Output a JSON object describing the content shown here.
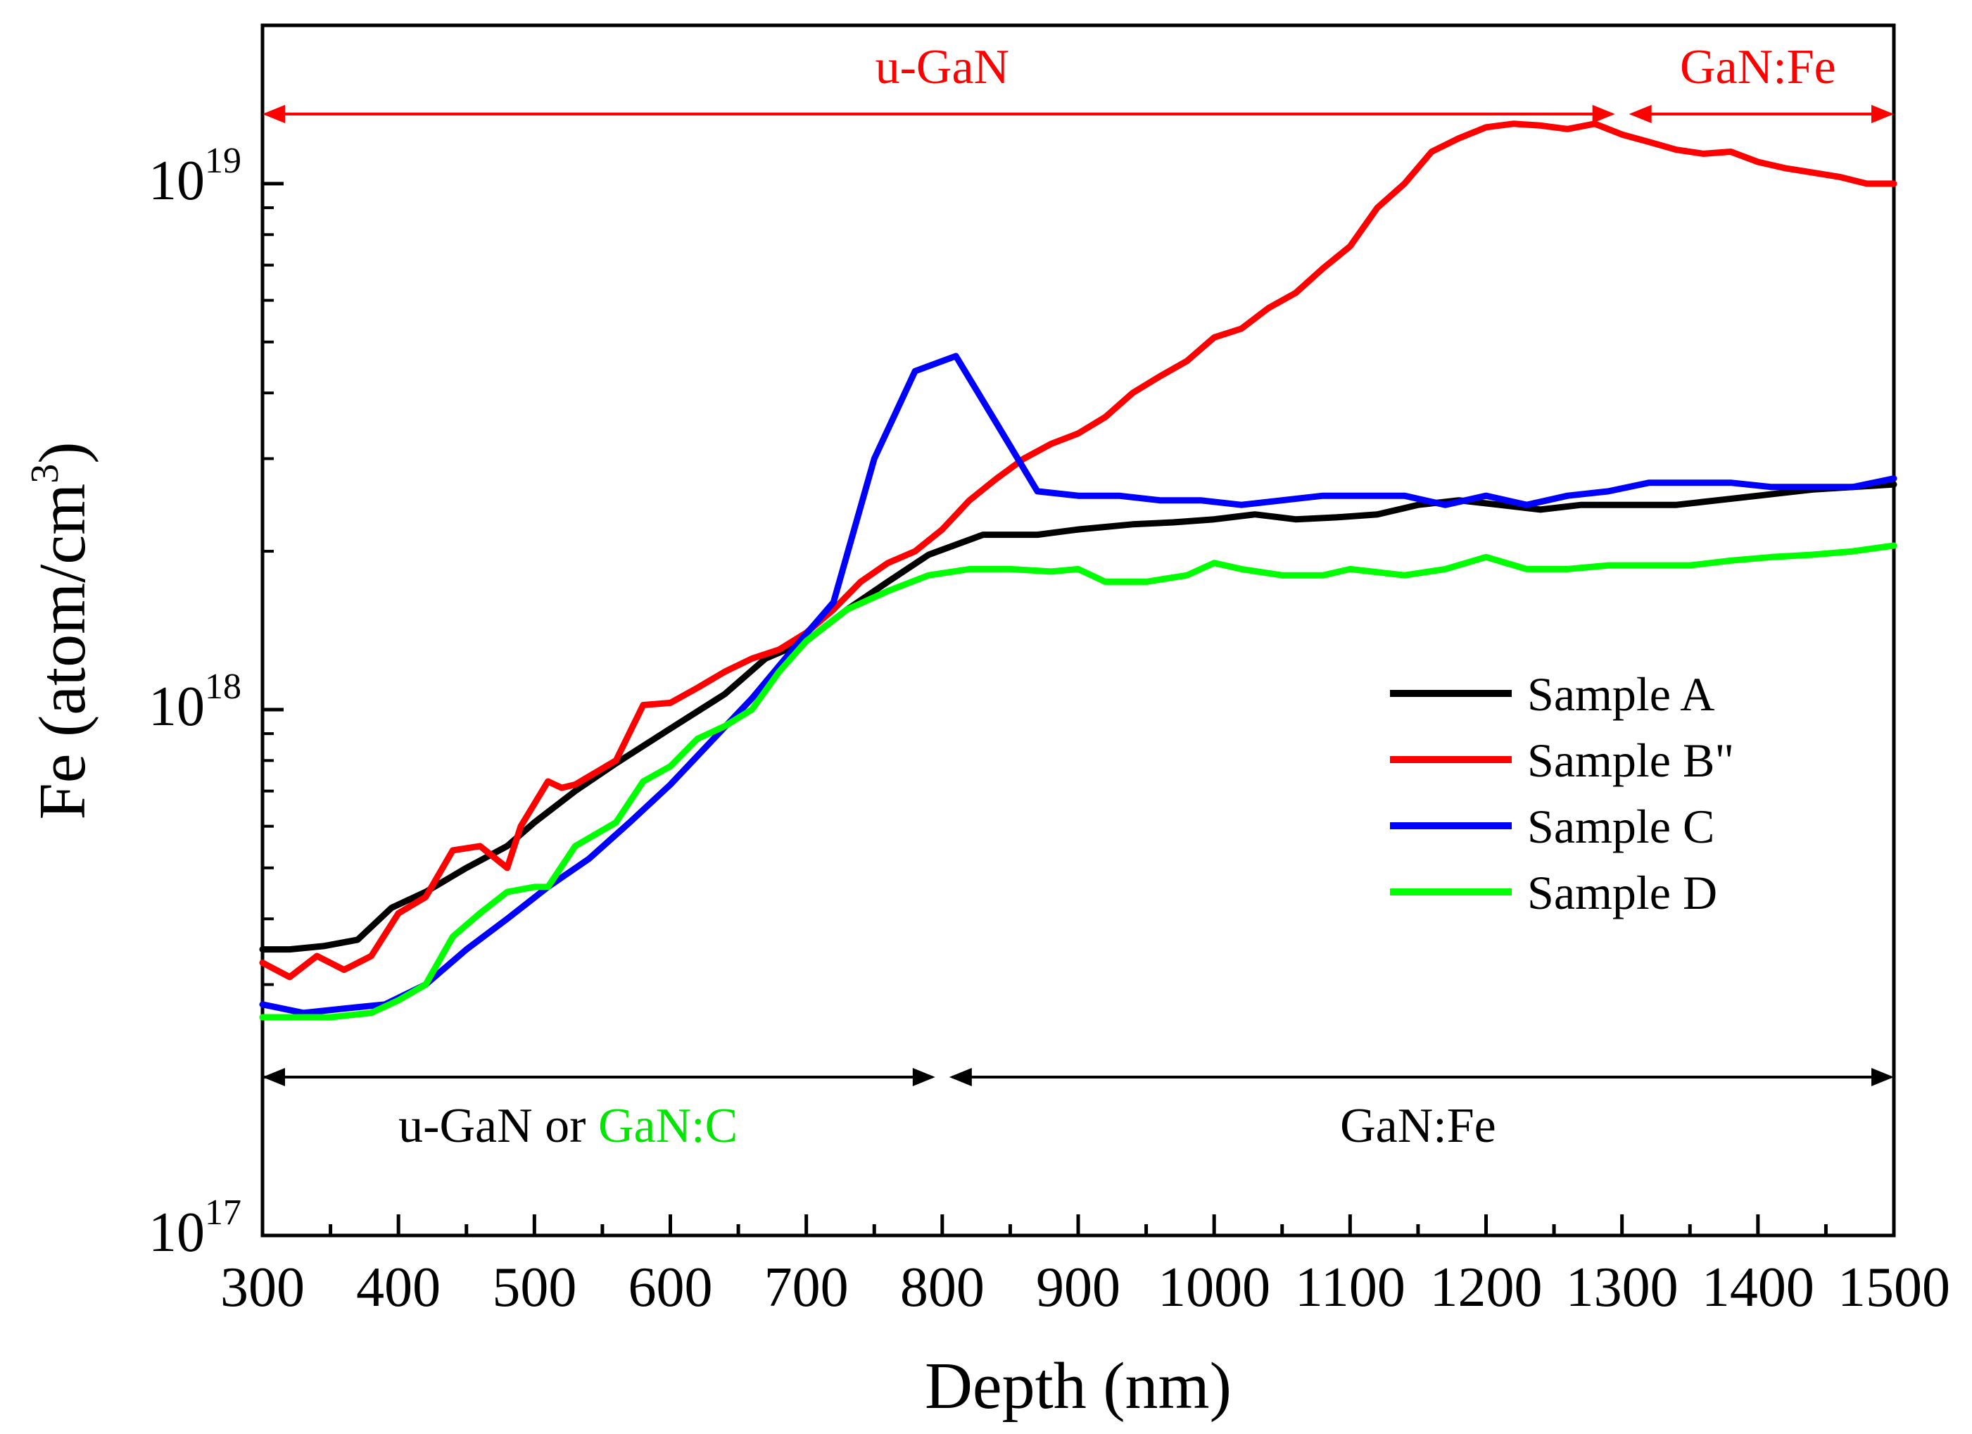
{
  "chart_data": {
    "type": "line",
    "xlabel": "Depth (nm)",
    "ylabel": "Fe (atom/cm3)",
    "ylabel_base": "Fe (atom/cm",
    "ylabel_sup": "3",
    "ylabel_close": ")",
    "xlim": [
      300,
      1500
    ],
    "ylim": [
      1e+17,
      2e+19
    ],
    "yscale": "log",
    "xticks": [
      300,
      400,
      500,
      600,
      700,
      800,
      900,
      1000,
      1100,
      1200,
      1300,
      1400,
      1500
    ],
    "xtick_labels": [
      "300",
      "400",
      "500",
      "600",
      "700",
      "800",
      "900",
      "1000",
      "1100",
      "1200",
      "1300",
      "1400",
      "1500"
    ],
    "yticks": [
      {
        "value": 1e+17,
        "base": "10",
        "exp": "17"
      },
      {
        "value": 1e+18,
        "base": "10",
        "exp": "18"
      },
      {
        "value": 1e+19,
        "base": "10",
        "exp": "19"
      }
    ],
    "grid": false,
    "legend": "right-middle",
    "series": [
      {
        "name": "Sample A",
        "color": "#000000",
        "x": [
          300,
          320,
          345,
          370,
          395,
          420,
          450,
          480,
          500,
          530,
          560,
          600,
          640,
          670,
          700,
          730,
          760,
          790,
          830,
          870,
          900,
          940,
          970,
          1000,
          1030,
          1060,
          1090,
          1120,
          1150,
          1180,
          1210,
          1240,
          1270,
          1300,
          1340,
          1370,
          1400,
          1440,
          1470,
          1500
        ],
        "y": [
          3.5e+17,
          3.5e+17,
          3.55e+17,
          3.65e+17,
          4.2e+17,
          4.5e+17,
          5e+17,
          5.5e+17,
          6.1e+17,
          7e+17,
          7.9e+17,
          9.2e+17,
          1.07e+18,
          1.25e+18,
          1.35e+18,
          1.55e+18,
          1.75e+18,
          1.97e+18,
          2.15e+18,
          2.15e+18,
          2.2e+18,
          2.25e+18,
          2.27e+18,
          2.3e+18,
          2.35e+18,
          2.3e+18,
          2.32e+18,
          2.35e+18,
          2.45e+18,
          2.5e+18,
          2.45e+18,
          2.4e+18,
          2.45e+18,
          2.45e+18,
          2.45e+18,
          2.5e+18,
          2.55e+18,
          2.62e+18,
          2.65e+18,
          2.68e+18
        ]
      },
      {
        "name": "Sample B\"",
        "color": "#ff0000",
        "x": [
          300,
          320,
          340,
          360,
          380,
          400,
          420,
          440,
          460,
          480,
          490,
          510,
          520,
          530,
          560,
          580,
          600,
          620,
          640,
          660,
          680,
          700,
          720,
          740,
          760,
          780,
          800,
          820,
          840,
          860,
          880,
          900,
          920,
          940,
          960,
          980,
          1000,
          1020,
          1040,
          1060,
          1080,
          1100,
          1120,
          1140,
          1160,
          1180,
          1200,
          1220,
          1240,
          1260,
          1280,
          1300,
          1320,
          1340,
          1360,
          1380,
          1400,
          1420,
          1440,
          1460,
          1480,
          1500
        ],
        "y": [
          3.3e+17,
          3.1e+17,
          3.4e+17,
          3.2e+17,
          3.4e+17,
          4.1e+17,
          4.4e+17,
          5.4e+17,
          5.5e+17,
          5e+17,
          6e+17,
          7.3e+17,
          7.1e+17,
          7.2e+17,
          8e+17,
          1.02e+18,
          1.03e+18,
          1.1e+18,
          1.18e+18,
          1.25e+18,
          1.3e+18,
          1.4e+18,
          1.55e+18,
          1.75e+18,
          1.9e+18,
          2e+18,
          2.2e+18,
          2.5e+18,
          2.75e+18,
          3e+18,
          3.2e+18,
          3.35e+18,
          3.6e+18,
          4e+18,
          4.3e+18,
          4.6e+18,
          5.1e+18,
          5.3e+18,
          5.8e+18,
          6.2e+18,
          6.9e+18,
          7.6e+18,
          9e+18,
          1e+19,
          1.15e+19,
          1.22e+19,
          1.28e+19,
          1.3e+19,
          1.29e+19,
          1.27e+19,
          1.3e+19,
          1.24e+19,
          1.2e+19,
          1.16e+19,
          1.14e+19,
          1.15e+19,
          1.1e+19,
          1.07e+19,
          1.05e+19,
          1.03e+19,
          1e+19,
          1e+19
        ]
      },
      {
        "name": "Sample C",
        "color": "#0000ff",
        "x": [
          300,
          330,
          360,
          390,
          420,
          450,
          480,
          510,
          540,
          570,
          600,
          630,
          660,
          690,
          720,
          750,
          780,
          810,
          840,
          870,
          900,
          930,
          960,
          990,
          1020,
          1050,
          1080,
          1110,
          1140,
          1170,
          1200,
          1230,
          1260,
          1290,
          1320,
          1350,
          1380,
          1410,
          1440,
          1470,
          1500
        ],
        "y": [
          2.75e+17,
          2.65e+17,
          2.7e+17,
          2.75e+17,
          3e+17,
          3.5e+17,
          4e+17,
          4.6e+17,
          5.2e+17,
          6.1e+17,
          7.2e+17,
          8.7e+17,
          1.05e+18,
          1.3e+18,
          1.6e+18,
          3e+18,
          4.4e+18,
          4.7e+18,
          3.5e+18,
          2.6e+18,
          2.55e+18,
          2.55e+18,
          2.5e+18,
          2.5e+18,
          2.45e+18,
          2.5e+18,
          2.55e+18,
          2.55e+18,
          2.55e+18,
          2.45e+18,
          2.55e+18,
          2.45e+18,
          2.55e+18,
          2.6e+18,
          2.7e+18,
          2.7e+18,
          2.7e+18,
          2.65e+18,
          2.65e+18,
          2.65e+18,
          2.75e+18
        ]
      },
      {
        "name": "Sample D",
        "color": "#00ff00",
        "x": [
          300,
          320,
          350,
          380,
          400,
          420,
          440,
          460,
          480,
          500,
          510,
          530,
          560,
          580,
          600,
          620,
          640,
          660,
          680,
          700,
          730,
          760,
          790,
          820,
          850,
          880,
          900,
          920,
          950,
          980,
          1000,
          1020,
          1050,
          1080,
          1100,
          1140,
          1170,
          1200,
          1230,
          1260,
          1290,
          1320,
          1350,
          1380,
          1410,
          1440,
          1470,
          1500
        ],
        "y": [
          2.6e+17,
          2.6e+17,
          2.6e+17,
          2.65e+17,
          2.8e+17,
          3e+17,
          3.7e+17,
          4.1e+17,
          4.5e+17,
          4.6e+17,
          4.6e+17,
          5.5e+17,
          6.1e+17,
          7.3e+17,
          7.8e+17,
          8.8e+17,
          9.3e+17,
          1e+18,
          1.18e+18,
          1.35e+18,
          1.55e+18,
          1.68e+18,
          1.8e+18,
          1.85e+18,
          1.85e+18,
          1.83e+18,
          1.85e+18,
          1.75e+18,
          1.75e+18,
          1.8e+18,
          1.9e+18,
          1.85e+18,
          1.8e+18,
          1.8e+18,
          1.85e+18,
          1.8e+18,
          1.85e+18,
          1.95e+18,
          1.85e+18,
          1.85e+18,
          1.88e+18,
          1.88e+18,
          1.88e+18,
          1.92e+18,
          1.95e+18,
          1.97e+18,
          2e+18,
          2.05e+18
        ]
      }
    ],
    "annotations": {
      "top_left_region": "u-GaN",
      "top_right_region": "GaN:Fe",
      "top_split_x": 1300,
      "bottom_left_prefix": "u-GaN",
      "bottom_left_or": "or",
      "bottom_left_suffix": "GaN:C",
      "bottom_right_region": "GaN:Fe",
      "bottom_split_x": 800,
      "top_color": "#ff0000",
      "bottom_color": "#000000",
      "green_text_color": "#00e600"
    }
  }
}
